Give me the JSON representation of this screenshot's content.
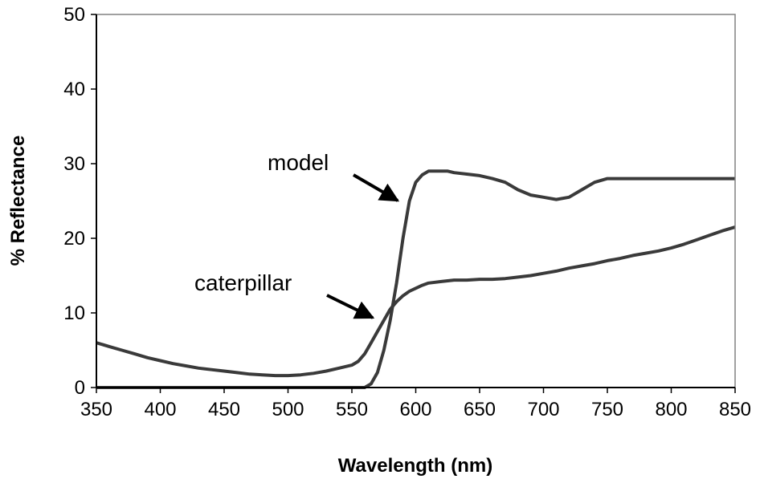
{
  "chart_data": {
    "type": "line",
    "xlabel": "Wavelength (nm)",
    "ylabel": "% Reflectance",
    "xlim": [
      350,
      850
    ],
    "ylim": [
      0,
      50
    ],
    "x_ticks": [
      "350",
      "400",
      "450",
      "500",
      "550",
      "600",
      "650",
      "700",
      "750",
      "800",
      "850"
    ],
    "y_ticks": [
      "0",
      "10",
      "20",
      "30",
      "40",
      "50"
    ],
    "grid": false,
    "legend": "none",
    "line_color": "#3a3a3a",
    "annotations": [
      {
        "text": "model",
        "arrow_to": [
          597,
          25
        ]
      },
      {
        "text": "caterpillar",
        "arrow_to": [
          582,
          9
        ]
      }
    ],
    "series": [
      {
        "x": [
          350,
          360,
          370,
          380,
          390,
          400,
          410,
          420,
          430,
          440,
          450,
          460,
          470,
          480,
          490,
          500,
          510,
          520,
          530,
          540,
          550,
          560,
          565,
          570,
          575,
          580,
          585,
          590,
          595,
          600,
          605,
          610,
          615,
          620,
          625,
          630,
          640,
          650,
          660,
          670,
          680,
          690,
          700,
          710,
          720,
          730,
          740,
          750,
          760,
          770,
          780,
          790,
          800,
          810,
          820,
          830,
          840,
          850
        ],
        "y": [
          0,
          0,
          0,
          0,
          0,
          0,
          0,
          0,
          0,
          0,
          0,
          0,
          0,
          0,
          0,
          0,
          0,
          0,
          0,
          0,
          0,
          0,
          0.5,
          2,
          5,
          9,
          14,
          20,
          25,
          27.5,
          28.5,
          29,
          29,
          29,
          29,
          28.8,
          28.6,
          28.4,
          28,
          27.5,
          26.5,
          25.8,
          25.5,
          25.2,
          25.5,
          26.5,
          27.5,
          28,
          28,
          28,
          28,
          28,
          28,
          28,
          28,
          28,
          28,
          28
        ]
      },
      {
        "x": [
          350,
          360,
          370,
          380,
          390,
          400,
          410,
          420,
          430,
          440,
          450,
          460,
          470,
          480,
          490,
          500,
          510,
          520,
          530,
          540,
          550,
          555,
          560,
          565,
          570,
          575,
          580,
          585,
          590,
          595,
          600,
          605,
          610,
          620,
          630,
          640,
          650,
          660,
          670,
          680,
          690,
          700,
          710,
          720,
          730,
          740,
          750,
          760,
          770,
          780,
          790,
          800,
          810,
          820,
          830,
          840,
          850
        ],
        "y": [
          6,
          5.5,
          5,
          4.5,
          4,
          3.6,
          3.2,
          2.9,
          2.6,
          2.4,
          2.2,
          2,
          1.8,
          1.7,
          1.6,
          1.6,
          1.7,
          1.9,
          2.2,
          2.6,
          3,
          3.5,
          4.5,
          6,
          7.5,
          9,
          10.5,
          11.5,
          12.3,
          12.9,
          13.3,
          13.7,
          14,
          14.2,
          14.4,
          14.4,
          14.5,
          14.5,
          14.6,
          14.8,
          15,
          15.3,
          15.6,
          16,
          16.3,
          16.6,
          17,
          17.3,
          17.7,
          18,
          18.3,
          18.7,
          19.2,
          19.8,
          20.4,
          21,
          21.5
        ]
      }
    ]
  }
}
